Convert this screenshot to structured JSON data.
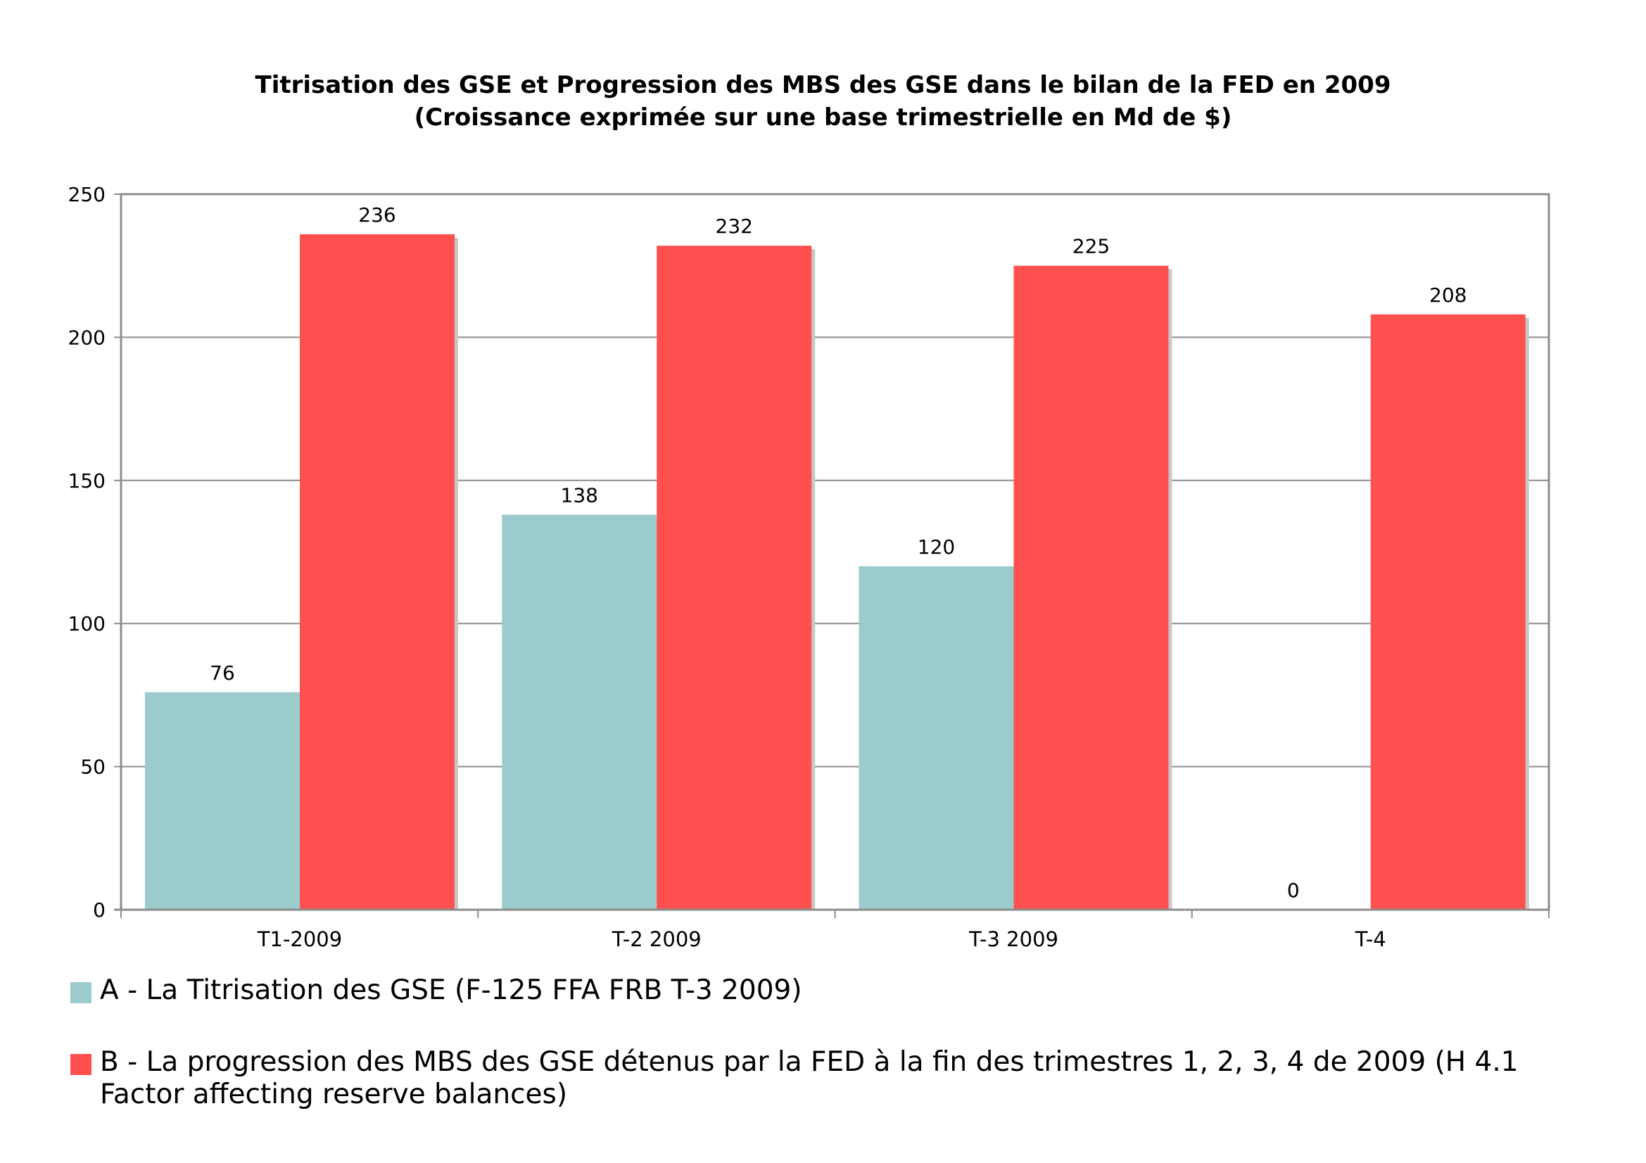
{
  "chart_data": {
    "type": "bar",
    "title": "Titrisation des GSE et Progression des MBS des GSE dans le bilan de la FED en 2009",
    "subtitle": "(Croissance exprimée sur une base trimestrielle en Md de $)",
    "categories": [
      "T1-2009",
      "T-2 2009",
      "T-3 2009",
      "T-4"
    ],
    "series": [
      {
        "name": "A - La Titrisation des GSE (F-125 FFA FRB T-3 2009)",
        "values": [
          76,
          138,
          120,
          0
        ],
        "color": "#9ccbcd"
      },
      {
        "name": "B - La progression des MBS des GSE détenus par la FED à la fin des trimestres 1, 2, 3, 4 de 2009 (H 4.1 Factor affecting reserve balances)",
        "values": [
          236,
          232,
          225,
          208
        ],
        "color": "#ff5050"
      }
    ],
    "data_labels": [
      [
        "76",
        "138",
        "120",
        "0"
      ],
      [
        "236",
        "232",
        "225",
        "208"
      ]
    ],
    "ylim": [
      0,
      250
    ],
    "yticks": [
      0,
      50,
      100,
      150,
      200,
      250
    ],
    "xlabel": "",
    "ylabel": "",
    "grid": true,
    "legend": "bottom"
  }
}
